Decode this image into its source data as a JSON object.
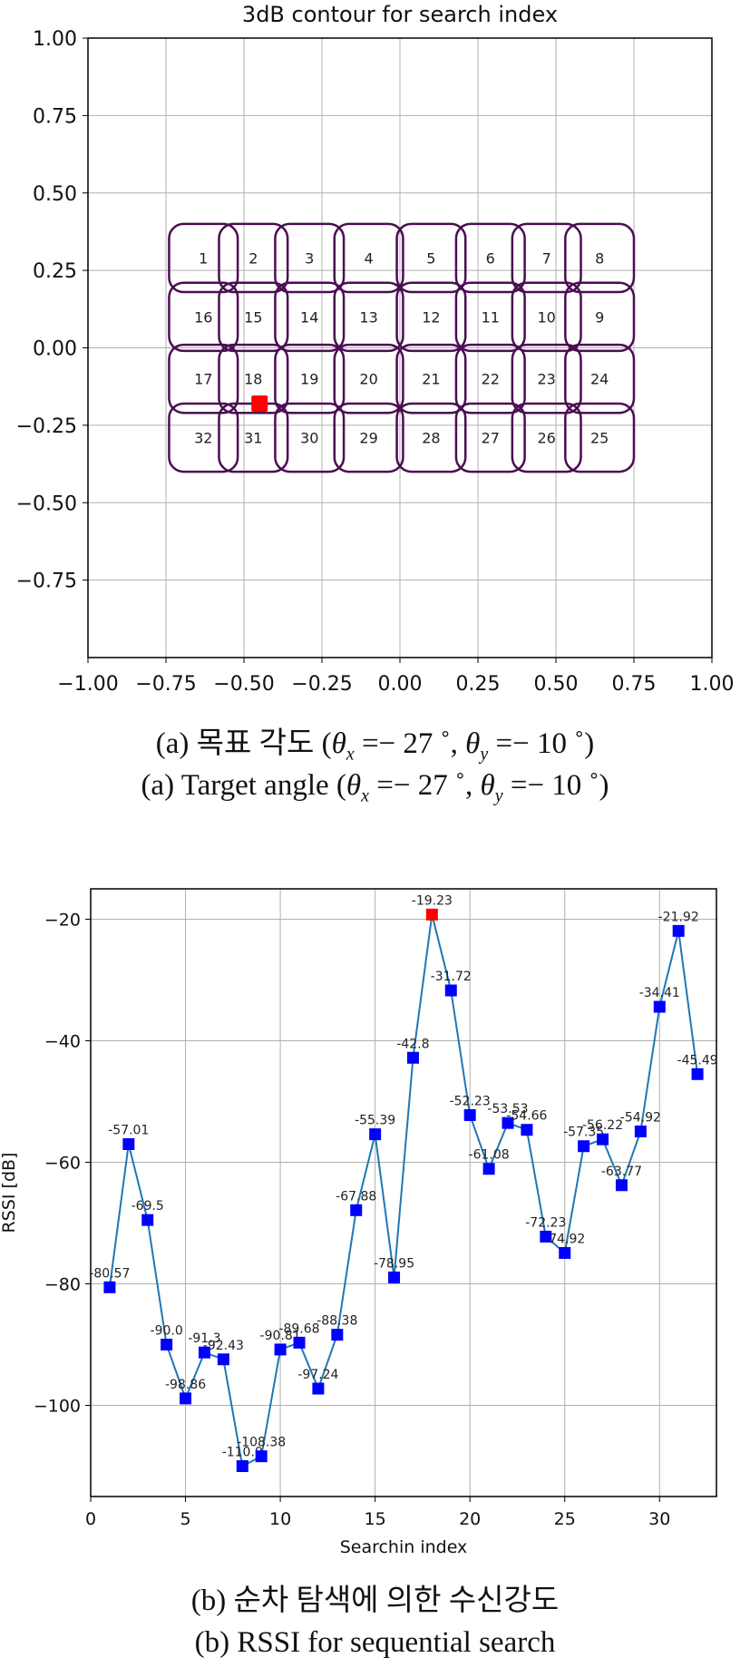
{
  "chart_data": [
    {
      "type": "contour",
      "title": "3dB contour for search index",
      "xlim": [
        -1.0,
        1.0
      ],
      "ylim": [
        -1.0,
        1.0
      ],
      "xticks": [
        "−1.00",
        "−0.75",
        "−0.50",
        "−0.25",
        "0.00",
        "0.25",
        "0.50",
        "0.75",
        "1.00"
      ],
      "yticks": [
        "1.00",
        "0.75",
        "0.50",
        "0.25",
        "0.00",
        "−0.25",
        "−0.50",
        "−0.75"
      ],
      "grid": true,
      "contour_color": "#4b0d52",
      "marker_color": "#ff0000",
      "target_marker": {
        "x": -0.45,
        "y": -0.18
      },
      "column_centers": [
        -0.63,
        -0.47,
        -0.29,
        -0.1,
        0.1,
        0.29,
        0.47,
        0.64
      ],
      "row_centers": [
        0.29,
        0.1,
        -0.1,
        -0.29
      ],
      "contour_half_width": 0.11,
      "contour_half_height": 0.11,
      "cells": [
        {
          "index": "1",
          "col": 0,
          "row": 0
        },
        {
          "index": "2",
          "col": 1,
          "row": 0
        },
        {
          "index": "3",
          "col": 2,
          "row": 0
        },
        {
          "index": "4",
          "col": 3,
          "row": 0
        },
        {
          "index": "5",
          "col": 4,
          "row": 0
        },
        {
          "index": "6",
          "col": 5,
          "row": 0
        },
        {
          "index": "7",
          "col": 6,
          "row": 0
        },
        {
          "index": "8",
          "col": 7,
          "row": 0
        },
        {
          "index": "16",
          "col": 0,
          "row": 1
        },
        {
          "index": "15",
          "col": 1,
          "row": 1
        },
        {
          "index": "14",
          "col": 2,
          "row": 1
        },
        {
          "index": "13",
          "col": 3,
          "row": 1
        },
        {
          "index": "12",
          "col": 4,
          "row": 1
        },
        {
          "index": "11",
          "col": 5,
          "row": 1
        },
        {
          "index": "10",
          "col": 6,
          "row": 1
        },
        {
          "index": "9",
          "col": 7,
          "row": 1
        },
        {
          "index": "17",
          "col": 0,
          "row": 2
        },
        {
          "index": "18",
          "col": 1,
          "row": 2
        },
        {
          "index": "19",
          "col": 2,
          "row": 2
        },
        {
          "index": "20",
          "col": 3,
          "row": 2
        },
        {
          "index": "21",
          "col": 4,
          "row": 2
        },
        {
          "index": "22",
          "col": 5,
          "row": 2
        },
        {
          "index": "23",
          "col": 6,
          "row": 2
        },
        {
          "index": "24",
          "col": 7,
          "row": 2
        },
        {
          "index": "32",
          "col": 0,
          "row": 3
        },
        {
          "index": "31",
          "col": 1,
          "row": 3
        },
        {
          "index": "30",
          "col": 2,
          "row": 3
        },
        {
          "index": "29",
          "col": 3,
          "row": 3
        },
        {
          "index": "28",
          "col": 4,
          "row": 3
        },
        {
          "index": "27",
          "col": 5,
          "row": 3
        },
        {
          "index": "26",
          "col": 6,
          "row": 3
        },
        {
          "index": "25",
          "col": 7,
          "row": 3
        }
      ]
    },
    {
      "type": "line",
      "xlabel": "Searchin index",
      "ylabel": "RSSI [dB]",
      "xlim": [
        0,
        33
      ],
      "ylim": [
        -115,
        -15
      ],
      "xticks": [
        "0",
        "5",
        "10",
        "15",
        "20",
        "25",
        "30"
      ],
      "yticks": [
        "−20",
        "−40",
        "−60",
        "−80",
        "−100"
      ],
      "grid": true,
      "line_color": "#1f77b4",
      "marker_color": "#0000ff",
      "highlight_color": "#ff0000",
      "highlight_x": 18,
      "x": [
        1,
        2,
        3,
        4,
        5,
        6,
        7,
        8,
        9,
        10,
        11,
        12,
        13,
        14,
        15,
        16,
        17,
        18,
        19,
        20,
        21,
        22,
        23,
        24,
        25,
        26,
        27,
        28,
        29,
        30,
        31,
        32
      ],
      "values": [
        -80.57,
        -57.01,
        -69.5,
        -90.0,
        -98.86,
        -91.3,
        -92.43,
        -110.0,
        -108.38,
        -90.81,
        -89.68,
        -97.24,
        -88.38,
        -67.88,
        -55.39,
        -78.95,
        -42.8,
        -19.23,
        -31.72,
        -52.23,
        -61.08,
        -53.53,
        -54.66,
        -72.23,
        -74.92,
        -57.35,
        -56.22,
        -63.77,
        -54.92,
        -34.41,
        -21.92,
        -45.49
      ],
      "labels": [
        "-80.57",
        "-57.01",
        "-69.5",
        "-90.0",
        "-98.86",
        "-91.3",
        "-92.43",
        "-110.0",
        "-108.38",
        "-90.81",
        "-89.68",
        "-97.24",
        "-88.38",
        "-67.88",
        "-55.39",
        "-78.95",
        "-42.8",
        "-19.23",
        "-31.72",
        "-52.23",
        "-61.08",
        "-53.53",
        "-54.66",
        "-72.23",
        "-74.92",
        "-57.35",
        "-56.22",
        "-63.77",
        "-54.92",
        "-34.41",
        "-21.92",
        "-45.49"
      ]
    }
  ],
  "captions": {
    "a_prefix_ko": "(a) 목표 각도",
    "a_prefix_en": "(a) Target angle",
    "angle_open": "(",
    "theta": "θ",
    "sub_x": "x",
    "sub_y": "y",
    "angle_x_value": "=− 27 ˚",
    "sep": ",",
    "angle_y_value": "=− 10 ˚",
    "angle_close": ")",
    "b_ko": "(b) 순차 탐색에 의한 수신강도",
    "b_en": "(b) RSSI for sequential search"
  }
}
